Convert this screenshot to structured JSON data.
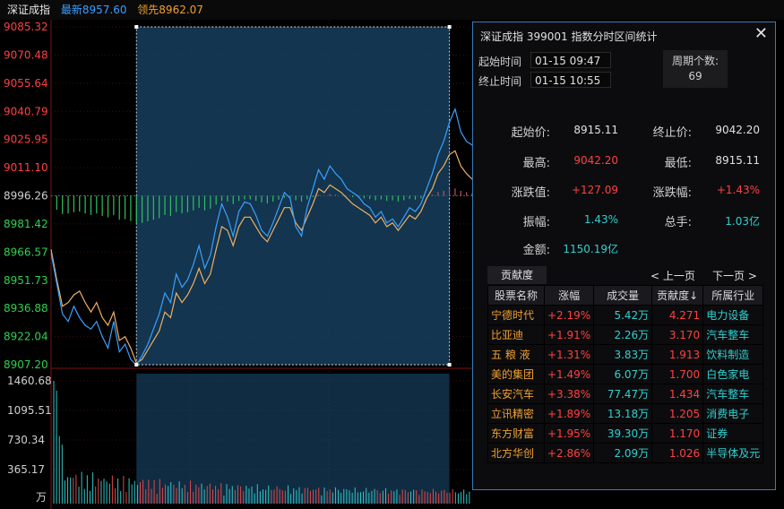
{
  "header": {
    "index_name": "深证成指",
    "latest": "最新8957.60",
    "lead": "领先8962.07"
  },
  "chart_data": {
    "type": "line",
    "price_axis_labels": [
      "9085.32",
      "9070.48",
      "9055.64",
      "9040.79",
      "9025.95",
      "9011.10",
      "8996.26",
      "8981.42",
      "8966.57",
      "8951.73",
      "8936.88",
      "8922.04",
      "8907.20"
    ],
    "price_axis_colors": [
      "#ff4040",
      "#ff4040",
      "#ff4040",
      "#ff4040",
      "#ff4040",
      "#ff4040",
      "#d0d0d0",
      "#30d050",
      "#30d050",
      "#30d050",
      "#30d050",
      "#30d050",
      "#30d050"
    ],
    "ylim": [
      8907.2,
      9085.32
    ],
    "prev_close": 8996.26,
    "volume_axis_labels": [
      "1460.68",
      "1095.51",
      "730.34",
      "365.17",
      "万"
    ],
    "volume_max": 1460.68,
    "series": [
      {
        "name": "最新",
        "color": "#3aa0ff",
        "values": [
          8966,
          8950,
          8934,
          8930,
          8938,
          8932,
          8928,
          8926,
          8930,
          8922,
          8916,
          8930,
          8914,
          8918,
          8910,
          8907,
          8912,
          8918,
          8926,
          8934,
          8945,
          8940,
          8955,
          8948,
          8952,
          8960,
          8970,
          8958,
          8965,
          8980,
          8992,
          8985,
          8975,
          8988,
          8993,
          8992,
          8986,
          8978,
          8975,
          8982,
          8990,
          8998,
          8995,
          8980,
          8975,
          8990,
          9000,
          9010,
          9005,
          9012,
          9008,
          9005,
          9000,
          8998,
          8996,
          8992,
          8990,
          8985,
          8988,
          8982,
          8984,
          8980,
          8985,
          8990,
          8988,
          8992,
          9000,
          9008,
          9018,
          9025,
          9035,
          9042,
          9030,
          9025,
          9023
        ]
      },
      {
        "name": "领先",
        "color": "#f0b060",
        "values": [
          8968,
          8952,
          8938,
          8940,
          8944,
          8946,
          8940,
          8935,
          8940,
          8932,
          8928,
          8935,
          8920,
          8922,
          8916,
          8908,
          8910,
          8915,
          8920,
          8925,
          8935,
          8932,
          8945,
          8940,
          8944,
          8950,
          8958,
          8950,
          8955,
          8968,
          8980,
          8978,
          8970,
          8980,
          8985,
          8985,
          8980,
          8975,
          8972,
          8978,
          8984,
          8990,
          8990,
          8982,
          8978,
          8985,
          8992,
          9000,
          8998,
          9002,
          9000,
          8998,
          8995,
          8992,
          8990,
          8988,
          8986,
          8982,
          8985,
          8980,
          8982,
          8978,
          8982,
          8986,
          8984,
          8988,
          8995,
          9000,
          9008,
          9012,
          9018,
          9020,
          9012,
          9008,
          9005
        ]
      }
    ],
    "range_start_index": 15,
    "range_end_index": 70
  },
  "panel": {
    "title": "深证成指  399001  指数分时区间统计",
    "start_label": "起始时间",
    "start_time": "01-15 09:47",
    "end_label": "终止时间",
    "end_time": "01-15 10:55",
    "period_label": "周期个数:",
    "period_value": "69",
    "stats": {
      "start_price_label": "起始价:",
      "start_price": "8915.11",
      "end_price_label": "终止价:",
      "end_price": "9042.20",
      "high_label": "最高:",
      "high": "9042.20",
      "low_label": "最低:",
      "low": "8915.11",
      "change_label": "涨跌值:",
      "change": "+127.09",
      "change_pct_label": "涨跌幅:",
      "change_pct": "+1.43%",
      "amplitude_label": "振幅:",
      "amplitude": "1.43%",
      "turnover_label": "总手:",
      "turnover": "1.03亿",
      "amount_label": "金额:",
      "amount": "1150.19亿"
    },
    "tab_label": "贡献度",
    "prev_page": "< 上一页",
    "next_page": "下一页 >",
    "columns": [
      "股票名称",
      "涨幅",
      "成交量",
      "贡献度↓",
      "所属行业"
    ],
    "rows": [
      {
        "name": "宁德时代",
        "pct": "+2.19%",
        "vol": "5.42万",
        "contrib": "4.271",
        "ind": "电力设备"
      },
      {
        "name": "比亚迪",
        "pct": "+1.91%",
        "vol": "2.26万",
        "contrib": "3.170",
        "ind": "汽车整车"
      },
      {
        "name": "五 粮 液",
        "pct": "+1.31%",
        "vol": "3.83万",
        "contrib": "1.913",
        "ind": "饮料制造"
      },
      {
        "name": "美的集团",
        "pct": "+1.49%",
        "vol": "6.07万",
        "contrib": "1.700",
        "ind": "白色家电"
      },
      {
        "name": "长安汽车",
        "pct": "+3.38%",
        "vol": "77.47万",
        "contrib": "1.434",
        "ind": "汽车整车"
      },
      {
        "name": "立讯精密",
        "pct": "+1.89%",
        "vol": "13.18万",
        "contrib": "1.205",
        "ind": "消费电子"
      },
      {
        "name": "东方财富",
        "pct": "+1.95%",
        "vol": "39.30万",
        "contrib": "1.170",
        "ind": "证券"
      },
      {
        "name": "北方华创",
        "pct": "+2.86%",
        "vol": "2.09万",
        "contrib": "1.026",
        "ind": "半导体及元"
      }
    ]
  }
}
